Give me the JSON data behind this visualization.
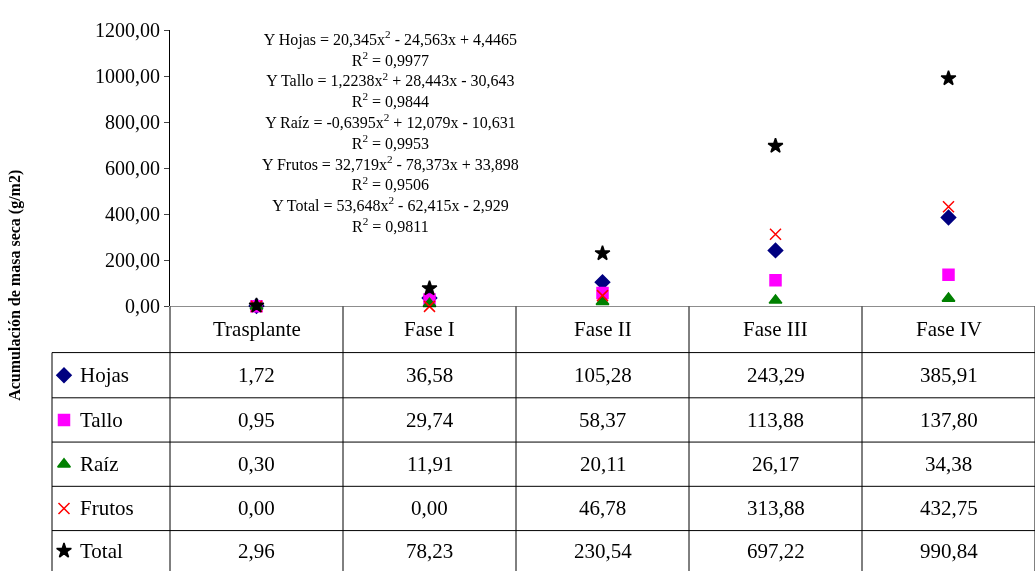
{
  "chart_data": {
    "type": "scatter",
    "ylabel": "Acumulación de masa seca (g/m2)",
    "categories": [
      "Trasplante",
      "Fase I",
      "Fase II",
      "Fase III",
      "Fase IV"
    ],
    "series": [
      {
        "name": "Hojas",
        "color": "#000080",
        "marker": "diamond",
        "values": [
          1.72,
          36.58,
          105.28,
          243.29,
          385.91
        ],
        "value_labels": [
          "1,72",
          "36,58",
          "105,28",
          "243,29",
          "385,91"
        ]
      },
      {
        "name": "Tallo",
        "color": "#ff00ff",
        "marker": "square",
        "values": [
          0.95,
          29.74,
          58.37,
          113.88,
          137.8
        ],
        "value_labels": [
          "0,95",
          "29,74",
          "58,37",
          "113,88",
          "137,80"
        ]
      },
      {
        "name": "Raíz",
        "color": "#008000",
        "marker": "triangle",
        "values": [
          0.3,
          11.91,
          20.11,
          26.17,
          34.38
        ],
        "value_labels": [
          "0,30",
          "11,91",
          "20,11",
          "26,17",
          "34,38"
        ]
      },
      {
        "name": "Frutos",
        "color": "#ff0000",
        "marker": "cross",
        "values": [
          0.0,
          0.0,
          46.78,
          313.88,
          432.75
        ],
        "value_labels": [
          "0,00",
          "0,00",
          "46,78",
          "313,88",
          "432,75"
        ]
      },
      {
        "name": "Total",
        "color": "#000000",
        "marker": "star",
        "values": [
          2.96,
          78.23,
          230.54,
          697.22,
          990.84
        ],
        "value_labels": [
          "2,96",
          "78,23",
          "230,54",
          "697,22",
          "990,84"
        ]
      }
    ],
    "ylim": [
      0,
      1200
    ],
    "yticks": [
      {
        "value": 0,
        "label": "0,00"
      },
      {
        "value": 200,
        "label": "200,00"
      },
      {
        "value": 400,
        "label": "400,00"
      },
      {
        "value": 600,
        "label": "600,00"
      },
      {
        "value": 800,
        "label": "800,00"
      },
      {
        "value": 1000,
        "label": "1000,00"
      },
      {
        "value": 1200,
        "label": "1200,00"
      }
    ],
    "legend": "bottom left",
    "annotations": [
      "Y Hojas = 20,345x$^{2}$ - 24,563x + 4,4465",
      "R$^{2}$ = 0,9977",
      "Y Tallo = 1,2238x$^{2}$ + 28,443x - 30,643",
      "R$^{2}$ = 0,9844",
      "Y Raíz = -0,6395x$^{2}$ + 12,079x - 10,631",
      "R$^{2}$ = 0,9953",
      "Y Frutos = 32,719x$^{2}$ - 78,373x + 33,898",
      "R$^{2}$ = 0,9506",
      "Y Total = 53,648x$^{2}$ - 62,415x - 2,929",
      "R$^{2}$ = 0,9811"
    ]
  }
}
